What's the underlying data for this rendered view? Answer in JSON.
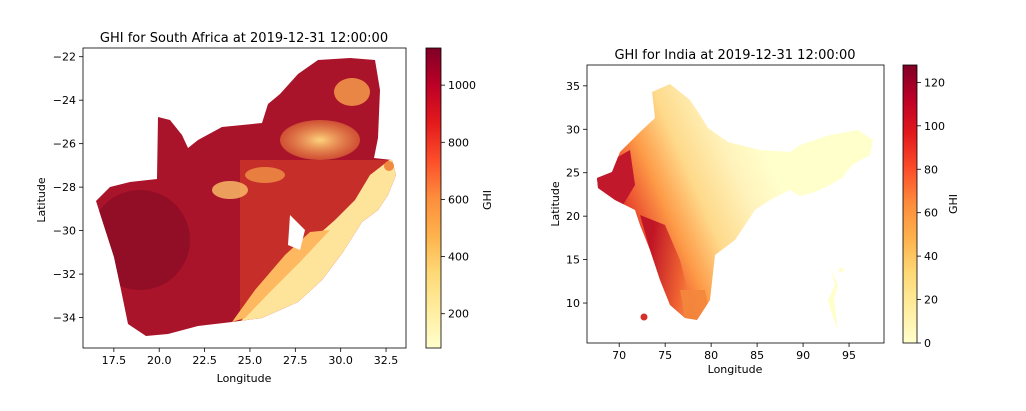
{
  "chart_data": [
    {
      "type": "heatmap",
      "title": "GHI for South Africa at 2019-12-31 12:00:00",
      "xlabel": "Longitude",
      "ylabel": "Latitude",
      "xlim": [
        15.8,
        33.6
      ],
      "ylim": [
        -35.4,
        -21.6
      ],
      "xticks": [
        17.5,
        20.0,
        22.5,
        25.0,
        27.5,
        30.0,
        32.5
      ],
      "xtick_labels": [
        "17.5",
        "20.0",
        "22.5",
        "25.0",
        "27.5",
        "30.0",
        "32.5"
      ],
      "yticks": [
        -22,
        -24,
        -26,
        -28,
        -30,
        -32,
        -34
      ],
      "ytick_labels": [
        "−22",
        "−24",
        "−26",
        "−28",
        "−30",
        "−32",
        "−34"
      ],
      "colorbar": {
        "label": "GHI",
        "min": 80,
        "max": 1130,
        "ticks": [
          200,
          400,
          600,
          800,
          1000
        ],
        "tick_labels": [
          "200",
          "400",
          "600",
          "800",
          "1000"
        ]
      },
      "colormap": "YlOrRd",
      "grid": false
    },
    {
      "type": "heatmap",
      "title": "GHI for India at 2019-12-31 12:00:00",
      "xlabel": "Longitude",
      "ylabel": "Latitude",
      "xlim": [
        66.5,
        98.8
      ],
      "ylim": [
        5.4,
        37.4
      ],
      "xticks": [
        70,
        75,
        80,
        85,
        90,
        95
      ],
      "xtick_labels": [
        "70",
        "75",
        "80",
        "85",
        "90",
        "95"
      ],
      "yticks": [
        10,
        15,
        20,
        25,
        30,
        35
      ],
      "ytick_labels": [
        "10",
        "15",
        "20",
        "25",
        "30",
        "35"
      ],
      "colorbar": {
        "label": "GHI",
        "min": 0,
        "max": 128,
        "ticks": [
          0,
          20,
          40,
          60,
          80,
          100,
          120
        ],
        "tick_labels": [
          "0",
          "20",
          "40",
          "60",
          "80",
          "100",
          "120"
        ]
      },
      "colormap": "YlOrRd",
      "grid": false
    }
  ],
  "colors": {
    "colormap_stops": [
      "#ffffcc",
      "#ffeda0",
      "#fed976",
      "#feb24c",
      "#fd8d3c",
      "#fc4e2a",
      "#e31a1c",
      "#bd0026",
      "#800026"
    ]
  }
}
